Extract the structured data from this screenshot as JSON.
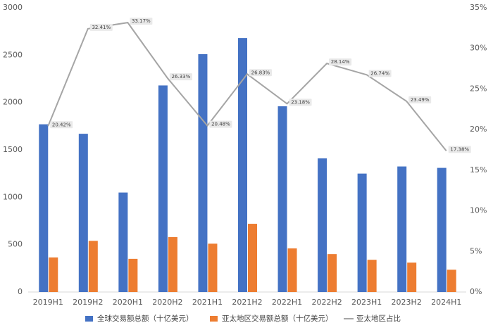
{
  "chart_data": {
    "type": "bar",
    "categories": [
      "2019H1",
      "2019H2",
      "2020H1",
      "2020H2",
      "2021H1",
      "2021H2",
      "2022H1",
      "2022H2",
      "2023H1",
      "2023H2",
      "2024H1"
    ],
    "series": [
      {
        "name": "全球交易额总额（十亿美元）",
        "type": "bar",
        "color": "#4472c4",
        "values": [
          1770,
          1670,
          1050,
          2180,
          2510,
          2680,
          1960,
          1410,
          1250,
          1325,
          1310
        ]
      },
      {
        "name": "亚太地区交易额总额（十亿美元）",
        "type": "bar",
        "color": "#ed7d31",
        "values": [
          365,
          540,
          350,
          580,
          510,
          720,
          460,
          400,
          340,
          310,
          235
        ]
      },
      {
        "name": "亚太地区占比",
        "type": "line",
        "axis": "y2",
        "color": "#a5a5a5",
        "values": [
          20.42,
          32.41,
          33.17,
          26.33,
          20.48,
          26.83,
          23.18,
          28.14,
          26.74,
          23.49,
          17.38
        ],
        "value_labels": [
          "20.42%",
          "32.41%",
          "33.17%",
          "26.33%",
          "20.48%",
          "26.83%",
          "23.18%",
          "28.14%",
          "26.74%",
          "23.49%",
          "17.38%"
        ]
      }
    ],
    "ylim": [
      0,
      3000
    ],
    "yticks": [
      0,
      500,
      1000,
      1500,
      2000,
      2500,
      3000
    ],
    "y2lim": [
      0,
      35
    ],
    "y2ticks": [
      {
        "value": 0,
        "label": "0%"
      },
      {
        "value": 5,
        "label": "5%"
      },
      {
        "value": 10,
        "label": "10%"
      },
      {
        "value": 15,
        "label": "15%"
      },
      {
        "value": 20,
        "label": "20%"
      },
      {
        "value": 25,
        "label": "25%"
      },
      {
        "value": 30,
        "label": "30%"
      },
      {
        "value": 35,
        "label": "35%"
      }
    ],
    "grid": false,
    "legend": "bottom"
  }
}
